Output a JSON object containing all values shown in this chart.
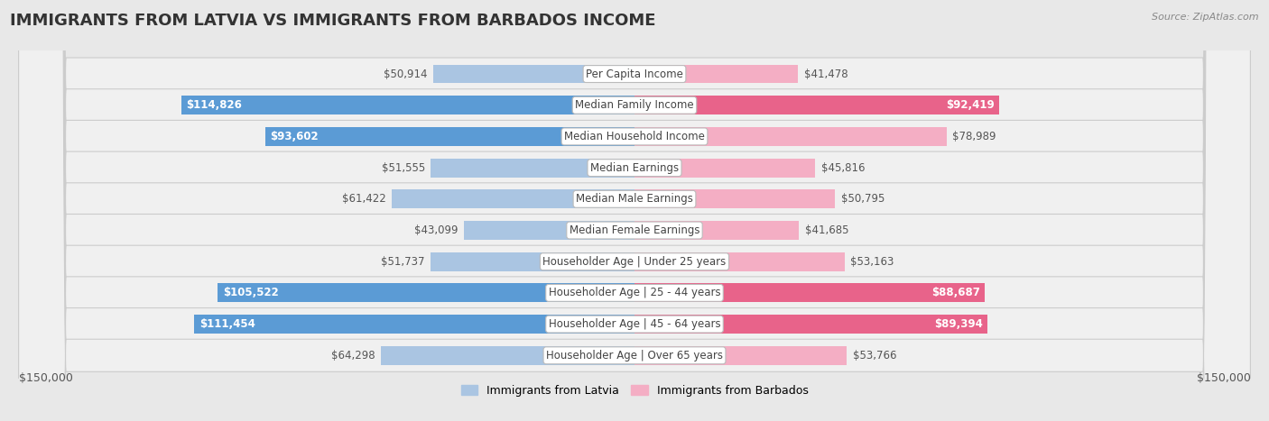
{
  "title": "IMMIGRANTS FROM LATVIA VS IMMIGRANTS FROM BARBADOS INCOME",
  "source": "Source: ZipAtlas.com",
  "categories": [
    "Per Capita Income",
    "Median Family Income",
    "Median Household Income",
    "Median Earnings",
    "Median Male Earnings",
    "Median Female Earnings",
    "Householder Age | Under 25 years",
    "Householder Age | 25 - 44 years",
    "Householder Age | 45 - 64 years",
    "Householder Age | Over 65 years"
  ],
  "latvia_values": [
    50914,
    114826,
    93602,
    51555,
    61422,
    43099,
    51737,
    105522,
    111454,
    64298
  ],
  "barbados_values": [
    41478,
    92419,
    78989,
    45816,
    50795,
    41685,
    53163,
    88687,
    89394,
    53766
  ],
  "max_value": 150000,
  "latvia_color_light": "#aac5e2",
  "latvia_color_dark": "#5b9bd5",
  "barbados_color_light": "#f4aec4",
  "barbados_color_dark": "#e8638a",
  "bg_color": "#e8e8e8",
  "row_bg_color": "#f0f0f0",
  "label_bg_color": "#ffffff",
  "legend_latvia": "Immigrants from Latvia",
  "legend_barbados": "Immigrants from Barbados",
  "xlabel_left": "$150,000",
  "xlabel_right": "$150,000",
  "title_fontsize": 13,
  "label_fontsize": 8.5,
  "value_fontsize": 8.5,
  "legend_fontsize": 9,
  "large_threshold": 0.55
}
